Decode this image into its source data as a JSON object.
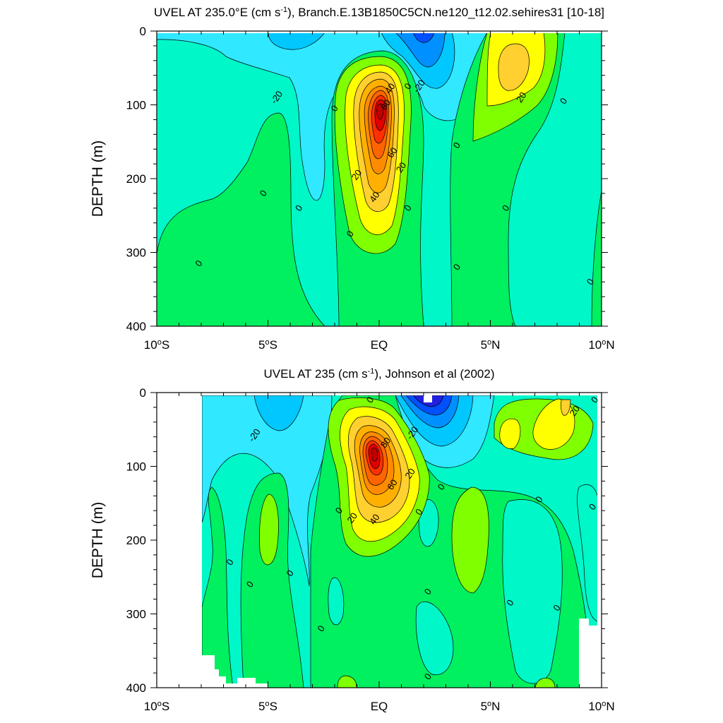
{
  "chart_data": [
    {
      "type": "contour",
      "title": "UVEL AT 235.0°E (cm s",
      "title_sup": "-1",
      "title_rest": "), Branch.E.13B1850C5CN.ne120_t12.02.sehires31 [10-18]",
      "ylabel": "DEPTH (m)",
      "xlim": [
        -10,
        10
      ],
      "ylim": [
        400,
        0
      ],
      "xticks": [
        {
          "v": -10,
          "main": "10",
          "deg": "o",
          "hem": "S"
        },
        {
          "v": -5,
          "main": "5",
          "deg": "o",
          "hem": "S"
        },
        {
          "v": 0,
          "main": "EQ",
          "deg": "",
          "hem": ""
        },
        {
          "v": 5,
          "main": "5",
          "deg": "o",
          "hem": "N"
        },
        {
          "v": 10,
          "main": "10",
          "deg": "o",
          "hem": "N"
        }
      ],
      "yticks": [
        "0",
        "100",
        "200",
        "300",
        "400"
      ],
      "contour_labels": [
        {
          "x": -4.6,
          "y": 90,
          "text": "-20"
        },
        {
          "x": 0.5,
          "y": 78,
          "text": "40"
        },
        {
          "x": 0.3,
          "y": 100,
          "text": "80"
        },
        {
          "x": 0.6,
          "y": 165,
          "text": "60"
        },
        {
          "x": 1.0,
          "y": 185,
          "text": "20"
        },
        {
          "x": -1.0,
          "y": 195,
          "text": "20"
        },
        {
          "x": -0.2,
          "y": 225,
          "text": "40"
        },
        {
          "x": -2.0,
          "y": 105,
          "text": "0"
        },
        {
          "x": 1.3,
          "y": 75,
          "text": "0"
        },
        {
          "x": 1.8,
          "y": 75,
          "text": "-20"
        },
        {
          "x": 3.5,
          "y": 155,
          "text": "0"
        },
        {
          "x": 6.4,
          "y": 90,
          "text": "20"
        },
        {
          "x": 8.3,
          "y": 95,
          "text": "0"
        },
        {
          "x": -5.2,
          "y": 220,
          "text": "0"
        },
        {
          "x": -3.6,
          "y": 240,
          "text": "0"
        },
        {
          "x": -8.1,
          "y": 315,
          "text": "0"
        },
        {
          "x": -1.3,
          "y": 275,
          "text": "0"
        },
        {
          "x": 1.3,
          "y": 240,
          "text": "0"
        },
        {
          "x": 5.7,
          "y": 240,
          "text": "0"
        },
        {
          "x": 3.5,
          "y": 320,
          "text": "0"
        },
        {
          "x": 9.5,
          "y": 340,
          "text": "0"
        }
      ]
    },
    {
      "type": "contour",
      "title": "UVEL AT 235 (cm s",
      "title_sup": "-1",
      "title_rest": "), Johnson et al (2002)",
      "ylabel": "DEPTH (m)",
      "xlim": [
        -10,
        10
      ],
      "ylim": [
        400,
        0
      ],
      "xticks": [
        {
          "v": -10,
          "main": "10",
          "deg": "o",
          "hem": "S"
        },
        {
          "v": -5,
          "main": "5",
          "deg": "o",
          "hem": "S"
        },
        {
          "v": 0,
          "main": "EQ",
          "deg": "",
          "hem": ""
        },
        {
          "v": 5,
          "main": "5",
          "deg": "o",
          "hem": "N"
        },
        {
          "v": 10,
          "main": "10",
          "deg": "o",
          "hem": "N"
        }
      ],
      "yticks": [
        "0",
        "100",
        "200",
        "300",
        "400"
      ],
      "contour_labels": [
        {
          "x": -5.6,
          "y": 58,
          "text": "-20"
        },
        {
          "x": -0.4,
          "y": 10,
          "text": "0"
        },
        {
          "x": 1.5,
          "y": 55,
          "text": "-20"
        },
        {
          "x": 0.3,
          "y": 68,
          "text": "80"
        },
        {
          "x": 0.6,
          "y": 125,
          "text": "60"
        },
        {
          "x": 1.4,
          "y": 110,
          "text": "20"
        },
        {
          "x": -1.2,
          "y": 170,
          "text": "20"
        },
        {
          "x": -0.2,
          "y": 172,
          "text": "40"
        },
        {
          "x": 2.8,
          "y": 128,
          "text": "0"
        },
        {
          "x": 1.8,
          "y": 162,
          "text": "0"
        },
        {
          "x": -1.8,
          "y": 160,
          "text": "0"
        },
        {
          "x": 7.2,
          "y": 145,
          "text": "0"
        },
        {
          "x": 9.6,
          "y": 155,
          "text": "0"
        },
        {
          "x": 8.8,
          "y": 25,
          "text": "20"
        },
        {
          "x": 9.7,
          "y": 10,
          "text": "0"
        },
        {
          "x": -6.7,
          "y": 230,
          "text": "0"
        },
        {
          "x": -5.8,
          "y": 260,
          "text": "0"
        },
        {
          "x": -4.0,
          "y": 245,
          "text": "0"
        },
        {
          "x": 2.2,
          "y": 270,
          "text": "0"
        },
        {
          "x": -2.6,
          "y": 320,
          "text": "0"
        },
        {
          "x": 5.9,
          "y": 285,
          "text": "0"
        },
        {
          "x": 8.0,
          "y": 292,
          "text": "0"
        },
        {
          "x": 2.2,
          "y": 385,
          "text": "0"
        }
      ]
    }
  ]
}
